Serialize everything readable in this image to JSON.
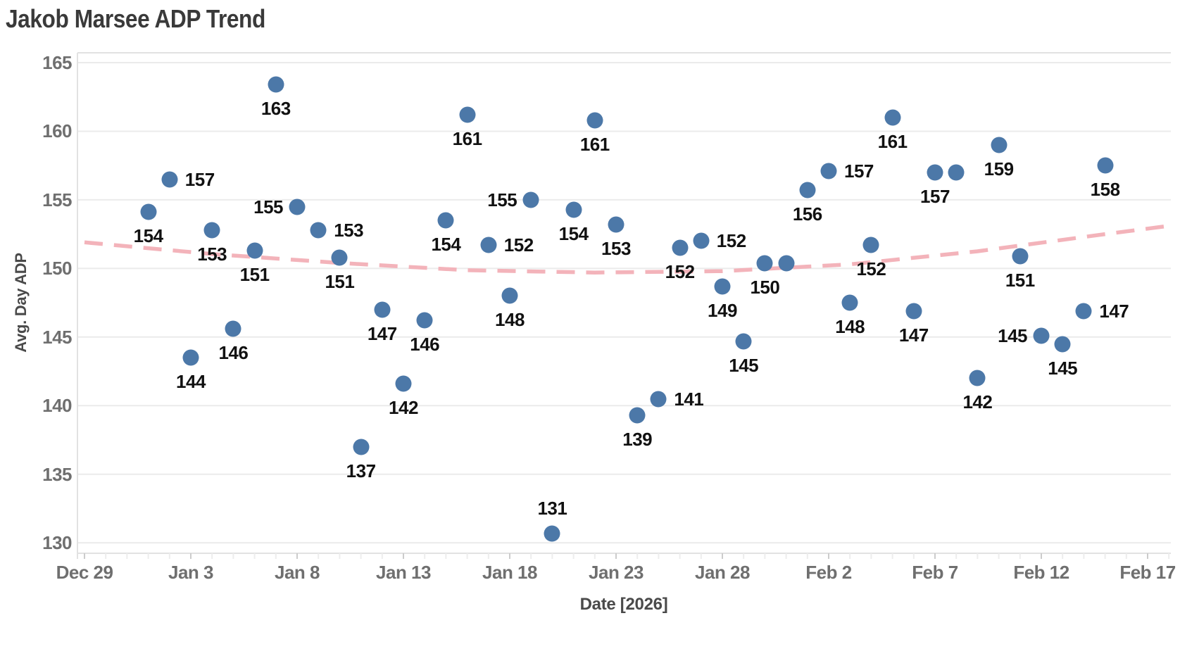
{
  "title": "Jakob Marsee ADP Trend",
  "colors": {
    "dot": "#4c78a8",
    "trend": "#f3b3ba",
    "grid": "#ebebeb",
    "axis_line": "#e2e2e2",
    "tick_minor": "#ededed",
    "tick_major": "#cccccc",
    "title_text": "#3a3a3a",
    "tick_text": "#6f6f6f",
    "axis_title_text": "#4a4a4a",
    "label_text": "#111111",
    "background": "#ffffff"
  },
  "chart_data": {
    "type": "scatter",
    "title": "Jakob Marsee ADP Trend",
    "xlabel": "Date [2026]",
    "ylabel": "Avg. Day ADP",
    "ylim": [
      127.5,
      165.8
    ],
    "x_range": [
      "Dec 29",
      "Feb 17"
    ],
    "grid": "horizontal",
    "y_ticks": [
      165,
      160,
      155,
      150,
      145,
      140,
      135,
      130
    ],
    "x_ticks": [
      "Dec 29",
      "Jan 3",
      "Jan 8",
      "Jan 13",
      "Jan 18",
      "Jan 23",
      "Jan 28",
      "Feb 2",
      "Feb 7",
      "Feb 12",
      "Feb 17"
    ],
    "x_tick_days": [
      0,
      5,
      10,
      15,
      20,
      25,
      30,
      35,
      40,
      45,
      50
    ],
    "minor_tick_days": 52,
    "points": [
      {
        "date": "Jan 1",
        "day": 3,
        "value": 154.1,
        "label": "154",
        "label_pos": "below"
      },
      {
        "date": "Jan 2",
        "day": 4,
        "value": 156.5,
        "label": "157",
        "label_pos": "right"
      },
      {
        "date": "Jan 3",
        "day": 5,
        "value": 143.5,
        "label": "144",
        "label_pos": "below"
      },
      {
        "date": "Jan 4",
        "day": 6,
        "value": 152.8,
        "label": "153",
        "label_pos": "below"
      },
      {
        "date": "Jan 5",
        "day": 7,
        "value": 145.6,
        "label": "146",
        "label_pos": "below"
      },
      {
        "date": "Jan 6",
        "day": 8,
        "value": 151.3,
        "label": "151",
        "label_pos": "below"
      },
      {
        "date": "Jan 7",
        "day": 9,
        "value": 163.4,
        "label": "163",
        "label_pos": "below"
      },
      {
        "date": "Jan 8",
        "day": 10,
        "value": 154.5,
        "label": "155",
        "label_pos": "left"
      },
      {
        "date": "Jan 9",
        "day": 11,
        "value": 152.8,
        "label": "153",
        "label_pos": "right"
      },
      {
        "date": "Jan 10",
        "day": 12,
        "value": 150.8,
        "label": "151",
        "label_pos": "below"
      },
      {
        "date": "Jan 11",
        "day": 13,
        "value": 137.0,
        "label": "137",
        "label_pos": "below"
      },
      {
        "date": "Jan 12",
        "day": 14,
        "value": 147.0,
        "label": "147",
        "label_pos": "below"
      },
      {
        "date": "Jan 13",
        "day": 15,
        "value": 141.6,
        "label": "142",
        "label_pos": "below"
      },
      {
        "date": "Jan 14",
        "day": 16,
        "value": 146.2,
        "label": "146",
        "label_pos": "below"
      },
      {
        "date": "Jan 15",
        "day": 17,
        "value": 153.5,
        "label": "154",
        "label_pos": "below"
      },
      {
        "date": "Jan 16",
        "day": 18,
        "value": 161.2,
        "label": "161",
        "label_pos": "below"
      },
      {
        "date": "Jan 17",
        "day": 19,
        "value": 151.7,
        "label": "152",
        "label_pos": "right"
      },
      {
        "date": "Jan 18",
        "day": 20,
        "value": 148.0,
        "label": "148",
        "label_pos": "below"
      },
      {
        "date": "Jan 19",
        "day": 21,
        "value": 155.0,
        "label": "155",
        "label_pos": "left"
      },
      {
        "date": "Jan 20",
        "day": 22,
        "value": 130.7,
        "label": "131",
        "label_pos": "above"
      },
      {
        "date": "Jan 21",
        "day": 23,
        "value": 154.3,
        "label": "154",
        "label_pos": "below"
      },
      {
        "date": "Jan 22",
        "day": 24,
        "value": 160.8,
        "label": "161",
        "label_pos": "below"
      },
      {
        "date": "Jan 23",
        "day": 25,
        "value": 153.2,
        "label": "153",
        "label_pos": "below"
      },
      {
        "date": "Jan 24",
        "day": 26,
        "value": 139.3,
        "label": "139",
        "label_pos": "below"
      },
      {
        "date": "Jan 25",
        "day": 27,
        "value": 140.5,
        "label": "141",
        "label_pos": "right"
      },
      {
        "date": "Jan 26",
        "day": 28,
        "value": 151.5,
        "label": "152",
        "label_pos": "below"
      },
      {
        "date": "Jan 27",
        "day": 29,
        "value": 152.0,
        "label": "152",
        "label_pos": "right"
      },
      {
        "date": "Jan 28",
        "day": 30,
        "value": 148.7,
        "label": "149",
        "label_pos": "below"
      },
      {
        "date": "Jan 29",
        "day": 31,
        "value": 144.7,
        "label": "145",
        "label_pos": "below"
      },
      {
        "date": "Jan 30",
        "day": 32,
        "value": 150.4,
        "label": "150",
        "label_pos": "below"
      },
      {
        "date": "Jan 31",
        "day": 33,
        "value": 150.4,
        "label": "",
        "label_pos": "none"
      },
      {
        "date": "Feb 1",
        "day": 34,
        "value": 155.7,
        "label": "156",
        "label_pos": "below"
      },
      {
        "date": "Feb 2",
        "day": 35,
        "value": 157.1,
        "label": "157",
        "label_pos": "right"
      },
      {
        "date": "Feb 3",
        "day": 36,
        "value": 147.5,
        "label": "148",
        "label_pos": "below"
      },
      {
        "date": "Feb 4",
        "day": 37,
        "value": 151.7,
        "label": "152",
        "label_pos": "below"
      },
      {
        "date": "Feb 5",
        "day": 38,
        "value": 161.0,
        "label": "161",
        "label_pos": "below"
      },
      {
        "date": "Feb 6",
        "day": 39,
        "value": 146.9,
        "label": "147",
        "label_pos": "below"
      },
      {
        "date": "Feb 7",
        "day": 40,
        "value": 157.0,
        "label": "157",
        "label_pos": "below"
      },
      {
        "date": "Feb 8",
        "day": 41,
        "value": 157.0,
        "label": "",
        "label_pos": "none"
      },
      {
        "date": "Feb 9",
        "day": 42,
        "value": 142.0,
        "label": "142",
        "label_pos": "below"
      },
      {
        "date": "Feb 10",
        "day": 43,
        "value": 159.0,
        "label": "159",
        "label_pos": "below"
      },
      {
        "date": "Feb 11",
        "day": 44,
        "value": 150.9,
        "label": "151",
        "label_pos": "below"
      },
      {
        "date": "Feb 12",
        "day": 45,
        "value": 145.1,
        "label": "145",
        "label_pos": "left"
      },
      {
        "date": "Feb 13",
        "day": 46,
        "value": 144.5,
        "label": "145",
        "label_pos": "below"
      },
      {
        "date": "Feb 14",
        "day": 47,
        "value": 146.9,
        "label": "147",
        "label_pos": "right"
      },
      {
        "date": "Feb 15",
        "day": 48,
        "value": 157.5,
        "label": "158",
        "label_pos": "below"
      }
    ],
    "trend": {
      "style": "dashed",
      "x_days": [
        0,
        6,
        12,
        18,
        24,
        30,
        36,
        42,
        48,
        51
      ],
      "values": [
        151.9,
        151.05,
        150.4,
        149.87,
        149.7,
        149.8,
        150.3,
        151.25,
        152.5,
        153.1
      ]
    }
  }
}
